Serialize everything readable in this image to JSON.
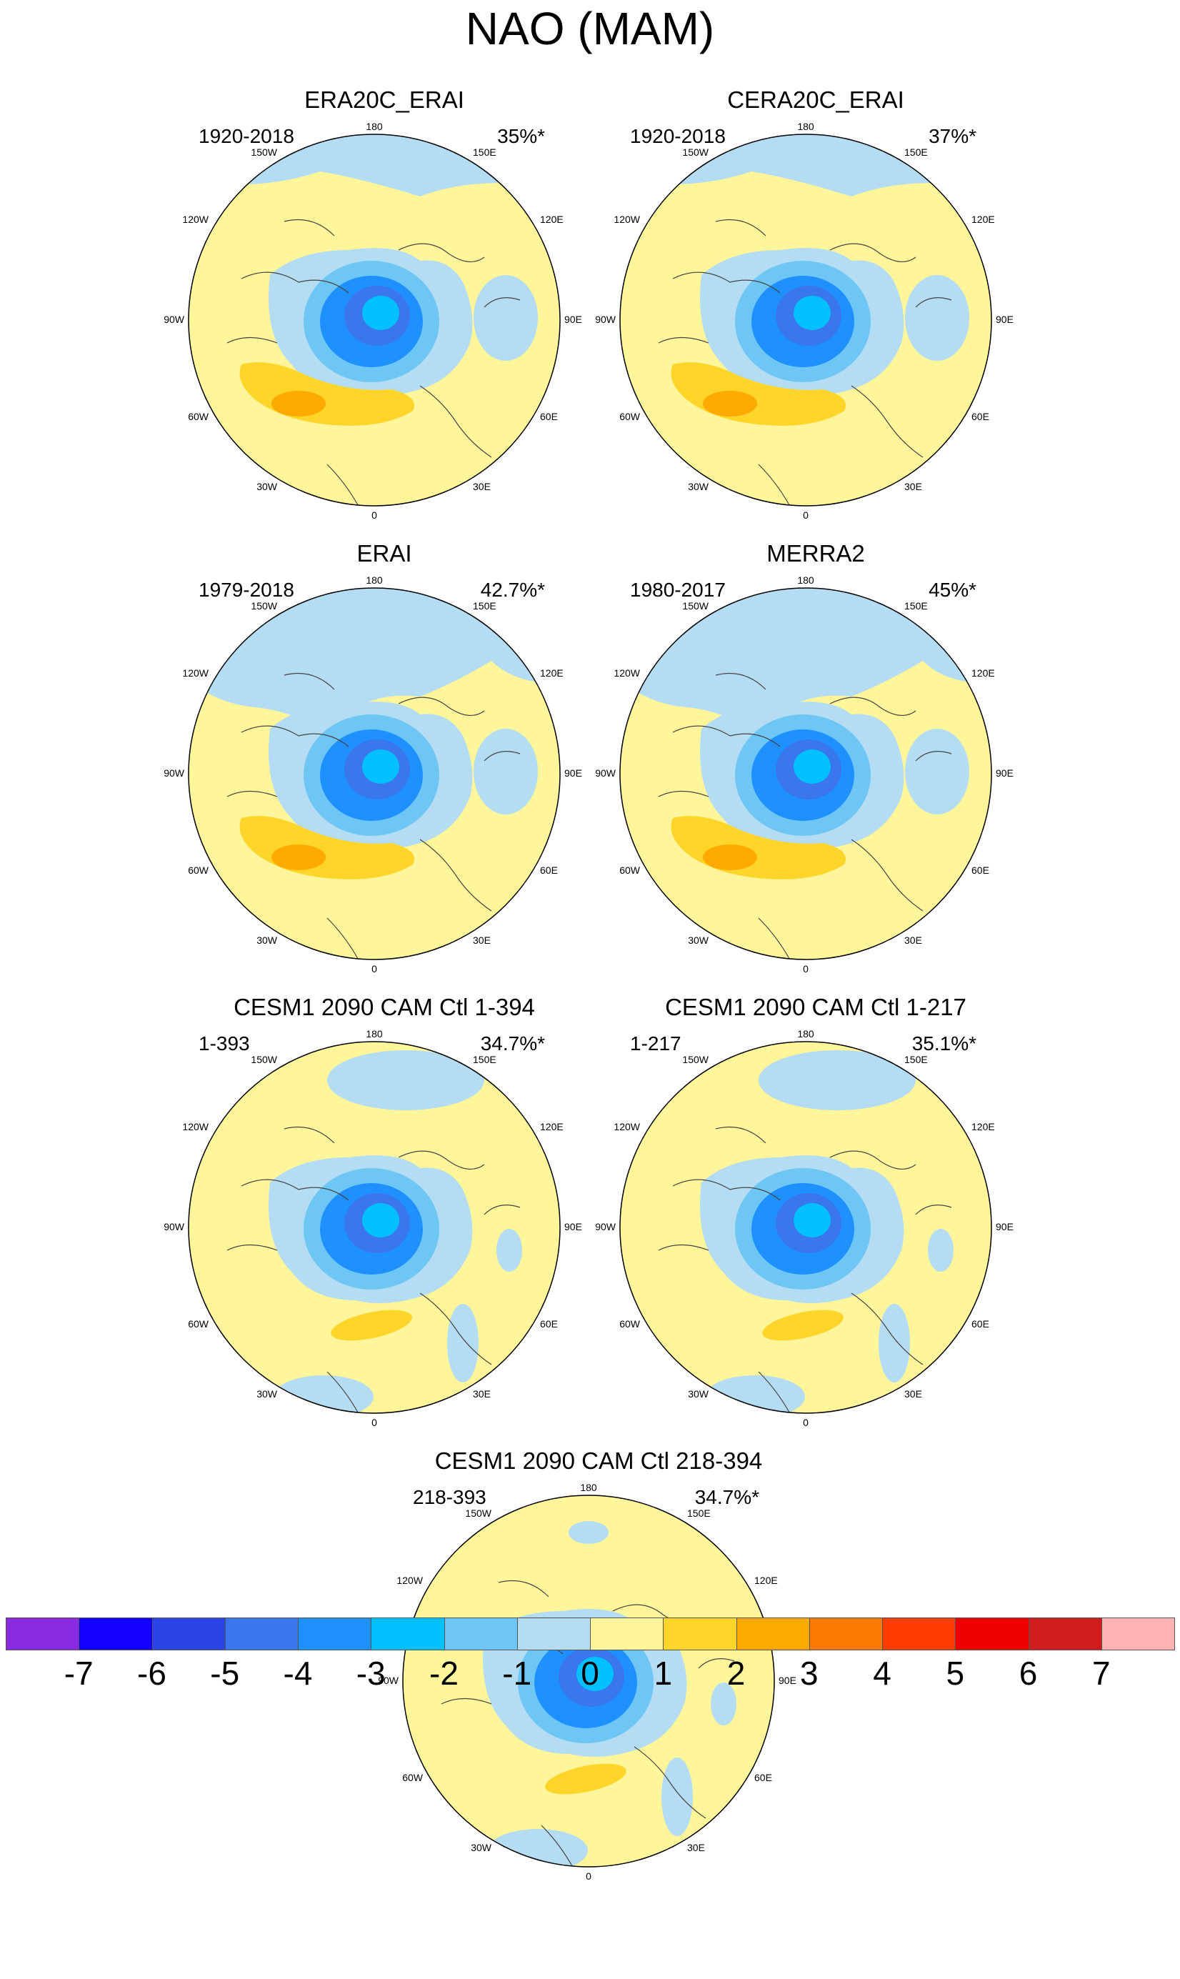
{
  "title": "NAO (MAM)",
  "longitude_labels": {
    "top": "180",
    "p150w": "150W",
    "p150e": "150E",
    "p120w": "120W",
    "p120e": "120E",
    "p90w": "90W",
    "p90e": "90E",
    "p60w": "60W",
    "p60e": "60E",
    "p30w": "30W",
    "p30e": "30E",
    "bottom": "0"
  },
  "panels": [
    {
      "title": "ERA20C_ERAI",
      "years": "1920-2018",
      "variance": "35%*"
    },
    {
      "title": "CERA20C_ERAI",
      "years": "1920-2018",
      "variance": "37%*"
    },
    {
      "title": "ERAI",
      "years": "1979-2018",
      "variance": "42.7%*"
    },
    {
      "title": "MERRA2",
      "years": "1980-2017",
      "variance": "45%*"
    },
    {
      "title": "CESM1 2090 CAM Ctl 1-394",
      "years": "1-393",
      "variance": "34.7%*"
    },
    {
      "title": "CESM1 2090 CAM Ctl 1-217",
      "years": "1-217",
      "variance": "35.1%*"
    },
    {
      "title": "CESM1 2090 CAM Ctl 218-394",
      "years": "218-393",
      "variance": "34.7%*"
    }
  ],
  "colorbar": {
    "colors": [
      "#8a2be2",
      "#1400ff",
      "#2b44e8",
      "#3a76ec",
      "#1e90ff",
      "#00c0ff",
      "#6ec6f5",
      "#b4dcf2",
      "#fff59a",
      "#ffd52a",
      "#ffaa00",
      "#ff7a00",
      "#ff3c00",
      "#ee0000",
      "#d01c1c",
      "#ffb2b2"
    ],
    "labels": [
      "-7",
      "-6",
      "-5",
      "-4",
      "-3",
      "-2",
      "-1",
      "0",
      "1",
      "2",
      "3",
      "4",
      "5",
      "6",
      "7"
    ]
  },
  "colors": {
    "neg1": "#b4dcf2",
    "neg2": "#6ec6f5",
    "neg3": "#1e90ff",
    "neg4": "#3a76ec",
    "neg2b": "#00c0ff",
    "zero": "#fff59a",
    "pos1": "#ffd52a",
    "pos2": "#ffaa00"
  }
}
